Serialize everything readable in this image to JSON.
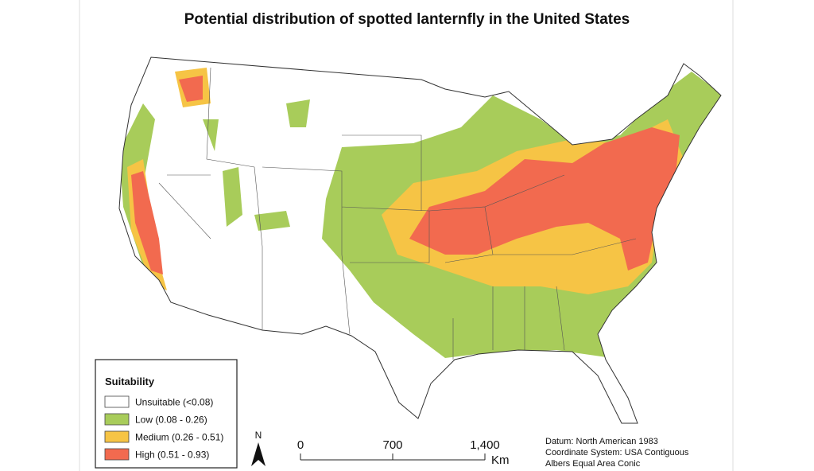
{
  "title": "Potential distribution of spotted lanternfly in the United States",
  "legend": {
    "title": "Suitability",
    "items": [
      {
        "label": "Unsuitable (<0.08)",
        "color": "#ffffff"
      },
      {
        "label": "Low (0.08 - 0.26)",
        "color": "#a8cc5a"
      },
      {
        "label": "Medium (0.26 - 0.51)",
        "color": "#f6c445"
      },
      {
        "label": "High (0.51 - 0.93)",
        "color": "#f26a4f"
      }
    ]
  },
  "north": "N",
  "scale_bar": {
    "ticks": [
      0,
      700,
      {
        "value": 1400,
        "label": "1,400"
      }
    ],
    "unit": "Km"
  },
  "notes": [
    "Datum: North American 1983",
    "Coordinate System: USA Contiguous",
    "Albers Equal Area Conic"
  ]
}
